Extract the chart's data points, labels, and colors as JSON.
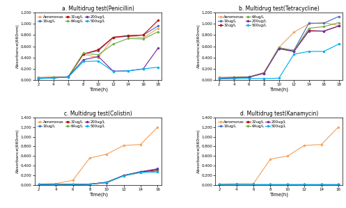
{
  "time_ab": [
    2,
    4,
    6,
    8,
    10,
    12,
    14,
    16,
    18
  ],
  "time_cd": [
    2,
    4,
    6,
    8,
    10,
    12,
    14,
    16
  ],
  "penicillin": {
    "title": "a. Multidrug test(Penicillin)",
    "Aeromonas": [
      0.05,
      0.05,
      0.06,
      0.46,
      0.4,
      0.75,
      0.78,
      0.75,
      0.92
    ],
    "16ug/L": [
      0.045,
      0.048,
      0.058,
      0.47,
      0.52,
      0.76,
      0.78,
      0.8,
      0.96
    ],
    "32ug/L": [
      0.045,
      0.048,
      0.06,
      0.46,
      0.54,
      0.76,
      0.79,
      0.8,
      1.06
    ],
    "64ug/L": [
      0.045,
      0.048,
      0.06,
      0.48,
      0.45,
      0.64,
      0.74,
      0.73,
      0.86
    ],
    "200ug/L": [
      0.03,
      0.04,
      0.06,
      0.36,
      0.42,
      0.16,
      0.165,
      0.2,
      0.57
    ],
    "500ug/L": [
      0.03,
      0.04,
      0.055,
      0.33,
      0.34,
      0.155,
      0.165,
      0.2,
      0.23
    ]
  },
  "tetracycline": {
    "title": "b. Multidrug test(Tetracycline)",
    "Aeromonas": [
      0.05,
      0.05,
      0.06,
      0.13,
      0.58,
      0.85,
      1.0,
      1.02,
      0.97
    ],
    "16ug/L": [
      0.045,
      0.048,
      0.055,
      0.125,
      0.57,
      0.53,
      1.01,
      1.01,
      1.13
    ],
    "32ug/L": [
      0.045,
      0.048,
      0.055,
      0.13,
      0.56,
      0.51,
      0.88,
      0.87,
      0.96
    ],
    "64ug/L": [
      0.045,
      0.048,
      0.06,
      0.125,
      0.58,
      0.52,
      0.92,
      0.95,
      1.02
    ],
    "200ug/L": [
      0.03,
      0.04,
      0.055,
      0.12,
      0.56,
      0.51,
      0.87,
      0.87,
      0.96
    ],
    "500ug/L": [
      0.025,
      0.025,
      0.03,
      0.03,
      0.035,
      0.46,
      0.51,
      0.51,
      0.64
    ]
  },
  "colistin": {
    "title": "c. Multidrug test(Colistin)",
    "Aeromonas": [
      0.02,
      0.03,
      0.1,
      0.56,
      0.64,
      0.82,
      0.84,
      1.2
    ],
    "16ug/L": [
      0.015,
      0.02,
      0.015,
      0.02,
      0.06,
      0.2,
      0.27,
      0.34
    ],
    "32ug/L": [
      0.015,
      0.02,
      0.015,
      0.02,
      0.06,
      0.2,
      0.27,
      0.31
    ],
    "64ug/L": [
      0.015,
      0.02,
      0.015,
      0.02,
      0.055,
      0.19,
      0.26,
      0.29
    ],
    "200ug/L": [
      0.015,
      0.02,
      0.015,
      0.02,
      0.05,
      0.2,
      0.28,
      0.33
    ],
    "500ug/L": [
      0.015,
      0.02,
      0.015,
      0.02,
      0.055,
      0.195,
      0.265,
      0.27
    ]
  },
  "kanamycin": {
    "title": "d. Multidrug test(Kanamycin)",
    "Aeromonas": [
      0.02,
      0.03,
      0.03,
      0.54,
      0.6,
      0.82,
      0.84,
      1.2
    ],
    "16ug/L": [
      0.01,
      0.01,
      0.01,
      0.01,
      0.01,
      0.01,
      0.01,
      0.01
    ],
    "32ug/L": [
      0.01,
      0.01,
      0.01,
      0.01,
      0.01,
      0.01,
      0.01,
      0.01
    ],
    "64ug/L": [
      0.01,
      0.01,
      0.01,
      0.01,
      0.01,
      0.01,
      0.01,
      0.01
    ],
    "200ug/L": [
      0.01,
      0.01,
      0.01,
      0.01,
      0.01,
      0.01,
      0.01,
      0.01
    ],
    "500ug/L": [
      0.01,
      0.01,
      0.01,
      0.01,
      0.01,
      0.01,
      0.01,
      0.01
    ]
  },
  "colors": {
    "Aeromonas": "#F4A460",
    "16ug/L": "#4472C4",
    "32ug/L": "#C00000",
    "64ug/L": "#70AD47",
    "200ug/L": "#7030A0",
    "500ug/L": "#00B0F0"
  },
  "series_order": [
    "Aeromonas",
    "16ug/L",
    "32ug/L",
    "64ug/L",
    "200ug/L",
    "500ug/L"
  ],
  "legend_a": [
    [
      "Aeromonas",
      "16ug/L",
      "32ug/L"
    ],
    [
      "64ug/L",
      "200ug/L",
      "500ug/L"
    ]
  ],
  "legend_b": [
    [
      "Aeromonas",
      "16ug/L"
    ],
    [
      "32ug/L",
      "64ug/L"
    ],
    [
      "200ug/L",
      "500ug/L"
    ]
  ],
  "legend_cd": [
    [
      "Aeromonas",
      "16ug/L",
      "32ug/L"
    ],
    [
      "64ug/L",
      "200ug/L",
      "500ug/L"
    ]
  ],
  "ylabel": "Absorbance(660nm)",
  "xlabel": "Time(h)",
  "ylim_ab": [
    0.0,
    1.2
  ],
  "ylim_cd": [
    0.0,
    1.4
  ],
  "yticks_ab": [
    0.0,
    0.2,
    0.4,
    0.6,
    0.8,
    1.0,
    1.2
  ],
  "yticks_cd": [
    0.0,
    0.2,
    0.4,
    0.6,
    0.8,
    1.0,
    1.2,
    1.4
  ],
  "xticks_ab": [
    2,
    4,
    6,
    8,
    10,
    12,
    14,
    16,
    18
  ],
  "xticks_cd": [
    2,
    4,
    6,
    8,
    10,
    12,
    14,
    16
  ]
}
